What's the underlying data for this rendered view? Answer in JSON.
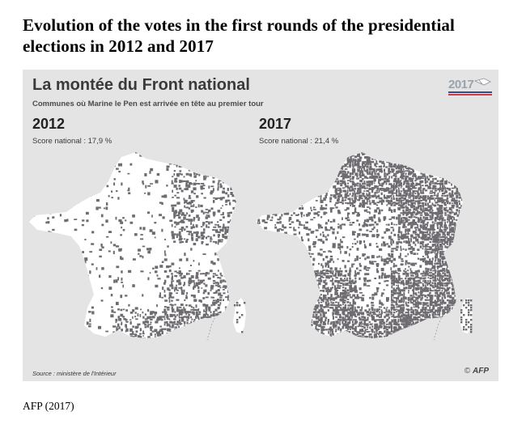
{
  "document": {
    "title": "Evolution of the votes in the first rounds of the presidential elections in 2012 and 2017",
    "caption": "AFP (2017)"
  },
  "figure": {
    "title": "La montée du Front national",
    "subtitle": "Communes où Marine le Pen est arrivée en tête au premier tour",
    "logo_text": "2017",
    "source": "Source : ministère de l'Intérieur",
    "credit_symbol": "©",
    "credit_logo": "AFP",
    "colors": {
      "background": "#e4e4e4",
      "land": "#ffffff",
      "fn_communes": "#6e6c70",
      "logo_red": "#d33a3a",
      "logo_blue": "#2f4f8f"
    },
    "panels": [
      {
        "year": "2012",
        "score": "Score national : 17,9 %",
        "fn_density": 0.14,
        "fn_hotspots": [
          "north-east",
          "south-east",
          "mediterranean-coast"
        ]
      },
      {
        "year": "2017",
        "score": "Score national : 21,4 %",
        "fn_density": 0.52,
        "fn_hotspots": [
          "north",
          "north-east",
          "east",
          "south-west",
          "south-east",
          "mediterranean-coast"
        ]
      }
    ]
  }
}
